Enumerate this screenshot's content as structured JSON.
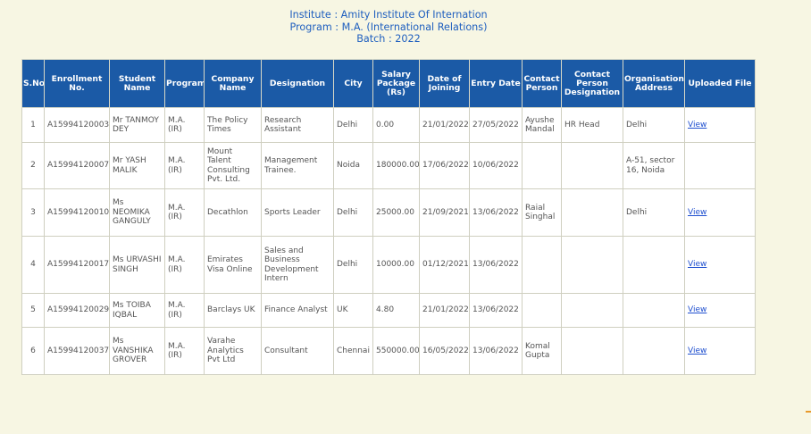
{
  "header": {
    "institute": "Institute : Amity Institute Of Internation",
    "program": "Program : M.A. (International Relations)",
    "batch": "Batch : 2022"
  },
  "table": {
    "columns": [
      "S.No",
      "Enrollment No.",
      "Student Name",
      "Program",
      "Company Name",
      "Designation",
      "City",
      "Salary Package (Rs)",
      "Date of Joining",
      "Entry Date",
      "Contact Person",
      "Contact Person Designation",
      "Organisation Address",
      "Uploaded File"
    ],
    "rows": [
      {
        "sno": "1",
        "enrollment": "A15994120003",
        "student": "Mr TANMOY DEY",
        "program": "M.A. (IR)",
        "company": "The Policy Times",
        "designation": "Research Assistant",
        "city": "Delhi",
        "salary": "0.00",
        "doj": "21/01/2022",
        "entry": "27/05/2022",
        "contact": "Ayushe Mandal",
        "contact_designation": "HR Head",
        "address": "Delhi",
        "file": "View"
      },
      {
        "sno": "2",
        "enrollment": "A15994120007",
        "student": "Mr YASH MALIK",
        "program": "M.A. (IR)",
        "company": "Mount Talent Consulting Pvt. Ltd.",
        "designation": "Management Trainee.",
        "city": "Noida",
        "salary": "180000.00",
        "doj": "17/06/2022",
        "entry": "10/06/2022",
        "contact": "",
        "contact_designation": "",
        "address": "A-51, sector 16, Noida",
        "file": ""
      },
      {
        "sno": "3",
        "enrollment": "A15994120010",
        "student": "Ms NEOMIKA GANGULY",
        "program": "M.A. (IR)",
        "company": "Decathlon",
        "designation": "Sports Leader",
        "city": "Delhi",
        "salary": "25000.00",
        "doj": "21/09/2021",
        "entry": "13/06/2022",
        "contact": "Raial Singhal",
        "contact_designation": "",
        "address": "Delhi",
        "file": "View"
      },
      {
        "sno": "4",
        "enrollment": "A15994120017",
        "student": "Ms URVASHI SINGH",
        "program": "M.A. (IR)",
        "company": "Emirates Visa Online",
        "designation": "Sales and Business Development Intern",
        "city": "Delhi",
        "salary": "10000.00",
        "doj": "01/12/2021",
        "entry": "13/06/2022",
        "contact": "",
        "contact_designation": "",
        "address": "",
        "file": "View"
      },
      {
        "sno": "5",
        "enrollment": "A15994120029",
        "student": "Ms TOIBA IQBAL",
        "program": "M.A. (IR)",
        "company": "Barclays UK",
        "designation": "Finance Analyst",
        "city": "UK",
        "salary": "4.80",
        "doj": "21/01/2022",
        "entry": "13/06/2022",
        "contact": "",
        "contact_designation": "",
        "address": "",
        "file": "View"
      },
      {
        "sno": "6",
        "enrollment": "A15994120037",
        "student": "Ms VANSHIKA GROVER",
        "program": "M.A. (IR)",
        "company": "Varahe Analytics Pvt Ltd",
        "designation": "Consultant",
        "city": "Chennai",
        "salary": "550000.00",
        "doj": "16/05/2022",
        "entry": "13/06/2022",
        "contact": "Komal Gupta",
        "contact_designation": "",
        "address": "",
        "file": "View"
      }
    ]
  },
  "colors": {
    "background": "#f7f6e3",
    "header_bg": "#1b5aa6",
    "title_text": "#1f5fbf",
    "link": "#1f4fcf"
  }
}
